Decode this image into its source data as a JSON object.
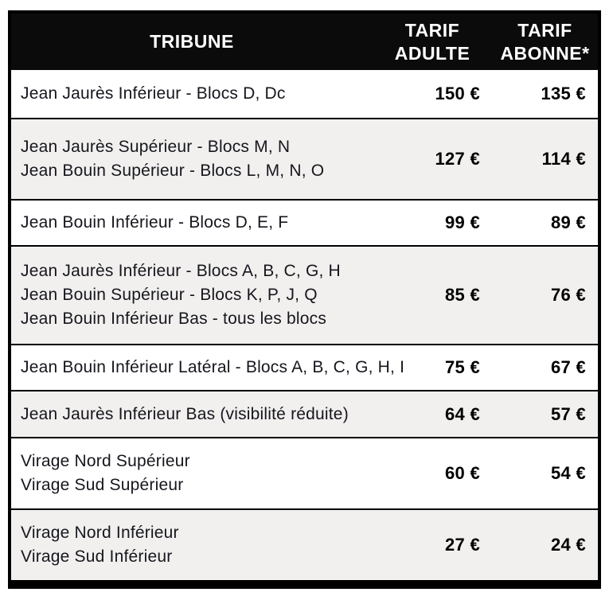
{
  "table": {
    "header": {
      "tribune": "TRIBUNE",
      "adult_line1": "TARIF",
      "adult_line2": "ADULTE",
      "abonne_line1": "TARIF",
      "abonne_line2": "ABONNE*"
    },
    "rows": [
      {
        "tribunes": [
          "Jean Jaurès Inférieur - Blocs D, Dc"
        ],
        "adult": "150 €",
        "abonne": "135 €"
      },
      {
        "tribunes": [
          "Jean Jaurès Supérieur - Blocs M, N",
          "Jean Bouin Supérieur - Blocs L, M, N, O"
        ],
        "adult": "127 €",
        "abonne": "114 €"
      },
      {
        "tribunes": [
          "Jean Bouin Inférieur - Blocs D, E, F"
        ],
        "adult": "99 €",
        "abonne": "89 €"
      },
      {
        "tribunes": [
          "Jean Jaurès Inférieur - Blocs A, B, C, G, H",
          "Jean Bouin Supérieur - Blocs K, P, J, Q",
          "Jean Bouin Inférieur Bas - tous les blocs"
        ],
        "adult": "85 €",
        "abonne": "76 €"
      },
      {
        "tribunes": [
          "Jean Bouin Inférieur Latéral - Blocs A, B, C, G, H, I"
        ],
        "adult": "75 €",
        "abonne": "67 €"
      },
      {
        "tribunes": [
          "Jean Jaurès Inférieur Bas (visibilité réduite)"
        ],
        "adult": "64 €",
        "abonne": "57 €"
      },
      {
        "tribunes": [
          "Virage Nord Supérieur",
          "Virage Sud Supérieur"
        ],
        "adult": "60 €",
        "abonne": "54 €"
      },
      {
        "tribunes": [
          "Virage Nord Inférieur",
          "Virage Sud Inférieur"
        ],
        "adult": "27 €",
        "abonne": "24 €"
      }
    ],
    "colors": {
      "header_bg": "#0b0b0b",
      "header_text": "#ffffff",
      "row_bg": "#ffffff",
      "row_alt_bg": "#f1f0ee",
      "body_text": "#16161e",
      "price_text": "#000000",
      "border": "#000000"
    }
  }
}
